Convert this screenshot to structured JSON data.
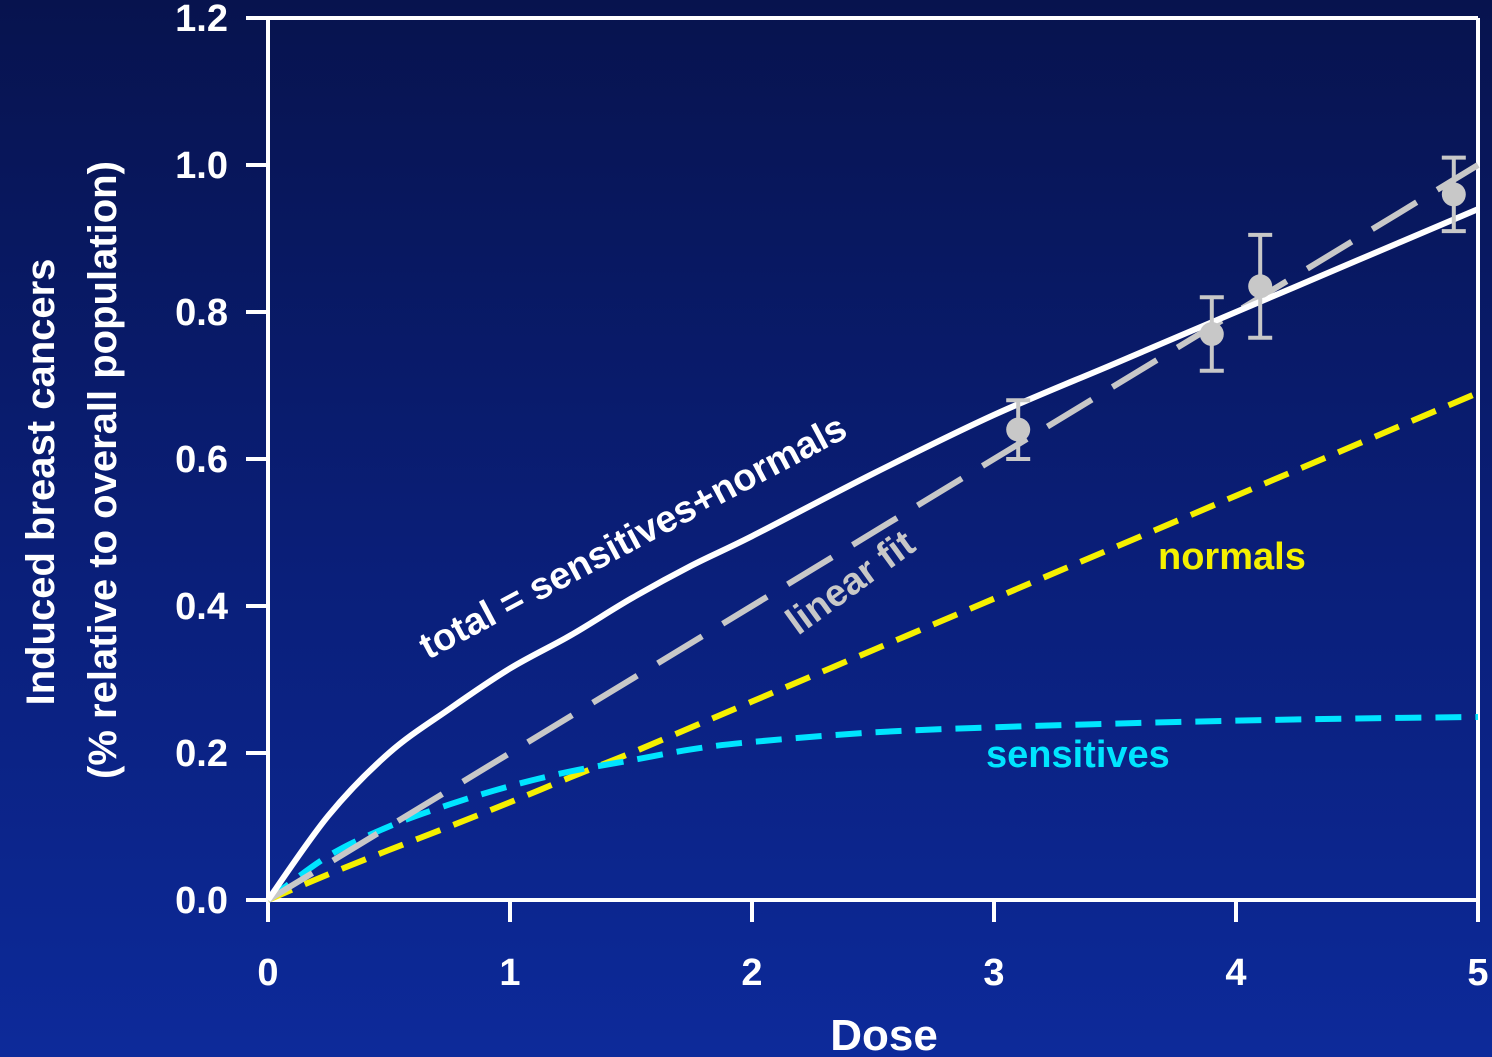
{
  "chart_data": {
    "type": "line",
    "title": "",
    "xlabel": "Dose",
    "ylabel_line1": "Induced breast cancers",
    "ylabel_line2": "(% relative to overall population)",
    "xlim": [
      0,
      5
    ],
    "ylim": [
      0,
      1.2
    ],
    "x_ticks": [
      "0",
      "1",
      "2",
      "3",
      "4",
      "5"
    ],
    "y_ticks": [
      "0.0",
      "0.2",
      "0.4",
      "0.6",
      "0.8",
      "1.0",
      "1.2"
    ],
    "grid": false,
    "x": [
      0,
      0.25,
      0.5,
      0.75,
      1.0,
      1.25,
      1.5,
      1.75,
      2.0,
      2.5,
      3.0,
      3.5,
      4.0,
      4.5,
      5.0
    ],
    "series": [
      {
        "name": "total = sensitives+normals",
        "color": "#ffffff",
        "style": "solid",
        "values": [
          0,
          0.115,
          0.2,
          0.26,
          0.315,
          0.36,
          0.41,
          0.455,
          0.495,
          0.58,
          0.66,
          0.73,
          0.8,
          0.87,
          0.94
        ]
      },
      {
        "name": "linear fit",
        "color": "#c8c8c8",
        "style": "long-dash",
        "values": [
          0,
          0.05,
          0.1,
          0.15,
          0.2,
          0.25,
          0.3,
          0.35,
          0.4,
          0.5,
          0.6,
          0.7,
          0.8,
          0.9,
          1.0
        ]
      },
      {
        "name": "normals",
        "color": "#f5f000",
        "style": "dash",
        "values": [
          0,
          0.035,
          0.068,
          0.1,
          0.133,
          0.167,
          0.2,
          0.235,
          0.27,
          0.34,
          0.41,
          0.48,
          0.55,
          0.62,
          0.69
        ]
      },
      {
        "name": "sensitives",
        "color": "#00e5ff",
        "style": "dash",
        "values": [
          0,
          0.06,
          0.1,
          0.13,
          0.155,
          0.175,
          0.19,
          0.205,
          0.215,
          0.228,
          0.235,
          0.24,
          0.244,
          0.247,
          0.249
        ]
      }
    ],
    "data_points": [
      {
        "x": 3.1,
        "y": 0.64,
        "err_low": 0.6,
        "err_high": 0.68
      },
      {
        "x": 3.9,
        "y": 0.77,
        "err_low": 0.72,
        "err_high": 0.82
      },
      {
        "x": 4.1,
        "y": 0.835,
        "err_low": 0.765,
        "err_high": 0.905
      },
      {
        "x": 4.9,
        "y": 0.96,
        "err_low": 0.91,
        "err_high": 1.01
      }
    ],
    "point_color": "#c8c8c8"
  }
}
